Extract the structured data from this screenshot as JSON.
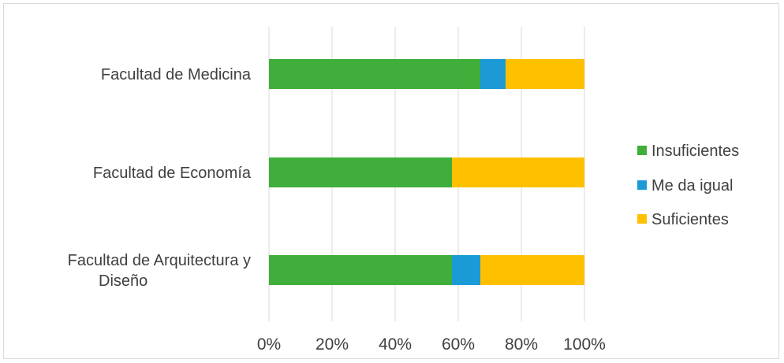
{
  "chart_data": {
    "type": "bar",
    "orientation": "horizontal",
    "stacked": true,
    "percent": true,
    "categories": [
      "Facultad de Medicina",
      "Facultad de Economía",
      "Facultad de Arquitectura y Diseño"
    ],
    "category_lines": [
      [
        "Facultad de Medicina"
      ],
      [
        "Facultad de Economía"
      ],
      [
        "Facultad de Arquitectura y",
        "Diseño"
      ]
    ],
    "series": [
      {
        "name": "Insuficientes",
        "color": "#3fae3a",
        "values": [
          67,
          58,
          58
        ]
      },
      {
        "name": "Me da igual",
        "color": "#1b9ad6",
        "values": [
          8,
          0,
          9
        ]
      },
      {
        "name": "Suficientes",
        "color": "#ffc000",
        "values": [
          25,
          42,
          33
        ]
      }
    ],
    "xlim": [
      0,
      100
    ],
    "xticks": [
      0,
      20,
      40,
      60,
      80,
      100
    ],
    "xtick_labels": [
      "0%",
      "20%",
      "40%",
      "60%",
      "80%",
      "100%"
    ],
    "grid": true,
    "legend_position": "right"
  }
}
